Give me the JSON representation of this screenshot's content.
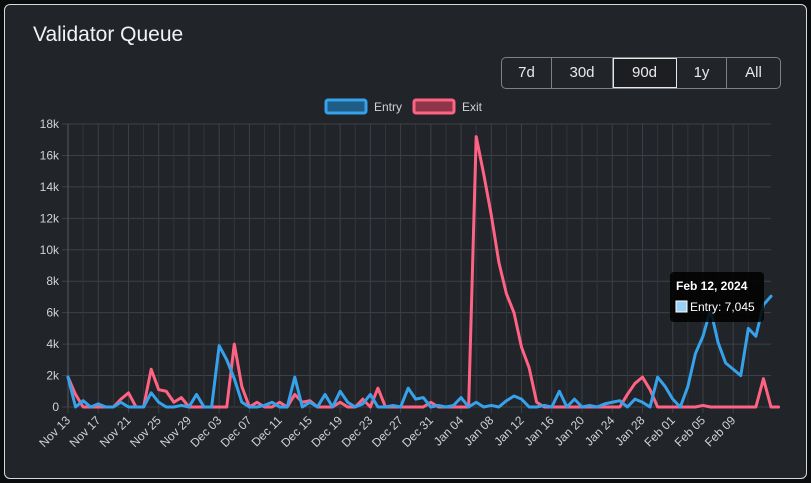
{
  "title": "Validator Queue",
  "range_buttons": [
    {
      "label": "7d",
      "active": false
    },
    {
      "label": "30d",
      "active": false
    },
    {
      "label": "90d",
      "active": true
    },
    {
      "label": "1y",
      "active": false
    },
    {
      "label": "All",
      "active": false
    }
  ],
  "tooltip": {
    "title": "Feb 12, 2024",
    "body": "Entry: 7,045"
  },
  "chart_data": {
    "type": "line",
    "title": "",
    "xlabel": "",
    "ylabel": "",
    "ylim": [
      0,
      18000
    ],
    "yticks": [
      0,
      2000,
      4000,
      6000,
      8000,
      10000,
      12000,
      14000,
      16000,
      18000
    ],
    "ytick_labels": [
      "0",
      "2k",
      "4k",
      "6k",
      "8k",
      "10k",
      "12k",
      "14k",
      "16k",
      "18k"
    ],
    "x_start_label": "Nov 13",
    "xtick_labels": [
      "Nov 13",
      "Nov 17",
      "Nov 21",
      "Nov 25",
      "Nov 29",
      "Dec 03",
      "Dec 07",
      "Dec 11",
      "Dec 15",
      "Dec 19",
      "Dec 23",
      "Dec 27",
      "Dec 31",
      "Jan 04",
      "Jan 08",
      "Jan 12",
      "Jan 16",
      "Jan 20",
      "Jan 24",
      "Jan 28",
      "Feb 01",
      "Feb 05",
      "Feb 09"
    ],
    "legend_position": "top-center",
    "grid": true,
    "series": [
      {
        "name": "Entry",
        "color": "#36a2eb",
        "values": [
          1900,
          0,
          400,
          0,
          200,
          0,
          0,
          300,
          0,
          0,
          0,
          900,
          300,
          0,
          0,
          100,
          0,
          800,
          0,
          0,
          3900,
          3000,
          1800,
          300,
          0,
          0,
          100,
          300,
          0,
          0,
          1900,
          0,
          300,
          0,
          800,
          0,
          1000,
          300,
          0,
          200,
          800,
          0,
          0,
          100,
          0,
          1200,
          500,
          600,
          0,
          100,
          0,
          100,
          600,
          0,
          300,
          0,
          100,
          0,
          400,
          700,
          500,
          0,
          0,
          100,
          0,
          1000,
          0,
          500,
          0,
          100,
          0,
          200,
          300,
          400,
          0,
          500,
          300,
          0,
          1900,
          1300,
          500,
          0,
          1300,
          3400,
          4500,
          6200,
          4100,
          2800,
          2400,
          2000,
          5000,
          4500,
          6500,
          7045
        ]
      },
      {
        "name": "Exit",
        "color": "#ff6384",
        "values": [
          1900,
          800,
          0,
          0,
          0,
          0,
          0,
          500,
          900,
          0,
          0,
          2400,
          1100,
          1000,
          300,
          600,
          0,
          0,
          0,
          0,
          0,
          0,
          4000,
          1300,
          0,
          300,
          0,
          0,
          300,
          0,
          800,
          300,
          400,
          0,
          0,
          0,
          300,
          0,
          0,
          500,
          0,
          1200,
          0,
          0,
          0,
          0,
          0,
          0,
          300,
          0,
          0,
          0,
          0,
          0,
          17200,
          14800,
          12200,
          9200,
          7200,
          6000,
          3800,
          2500,
          300,
          0,
          0,
          0,
          0,
          0,
          0,
          0,
          0,
          0,
          0,
          0,
          800,
          1500,
          1900,
          1100,
          0,
          0,
          0,
          0,
          0,
          0,
          100,
          0,
          0,
          0,
          0,
          0,
          0,
          0,
          1800,
          0,
          0
        ]
      }
    ]
  }
}
